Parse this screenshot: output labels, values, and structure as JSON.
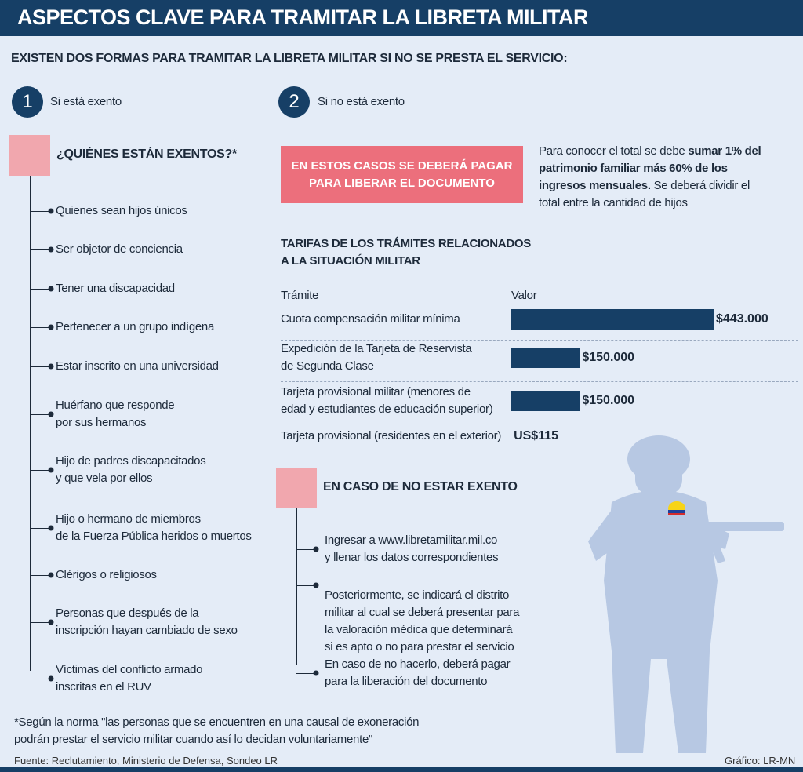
{
  "header": {
    "title": "ASPECTOS CLAVE PARA TRAMITAR LA LIBRETA MILITAR"
  },
  "subtitle": "EXISTEN DOS FORMAS PARA TRAMITAR LA LIBRETA MILITAR SI NO SE PRESTA EL SERVICIO:",
  "options": [
    {
      "number": "1",
      "label": "Si está exento"
    },
    {
      "number": "2",
      "label": "Si no está exento"
    }
  ],
  "exempt": {
    "title": "¿QUIÉNES ESTÁN EXENTOS?*",
    "items": [
      "Quienes sean hijos únicos",
      "Ser objetor de conciencia",
      "Tener una discapacidad",
      "Pertenecer a un grupo indígena",
      "Estar inscrito en una universidad",
      "Huérfano que responde\npor sus hermanos",
      "Hijo de padres discapacitados\ny que vela por ellos",
      "Hijo o hermano de miembros\nde la Fuerza Pública heridos o muertos",
      "Clérigos o religiosos",
      "Personas que después de la\ninscripción hayan cambiado de sexo",
      "Víctimas del conflicto armado\ninscritas en el RUV"
    ]
  },
  "payment": {
    "banner": "EN ESTOS CASOS SE DEBERÁ PAGAR PARA LIBERAR EL DOCUMENTO",
    "note": [
      "Para conocer el total se debe",
      "sumar 1% del patrimonio familiar más 60% de los ingresos mensuales.",
      "Se deberá dividir el total entre la cantidad de hijos"
    ]
  },
  "fees": {
    "title": "TARIFAS DE LOS TRÁMITES RELACIONADOS\nA LA SITUACIÓN MILITAR",
    "columns": [
      "Trámite",
      "Valor"
    ],
    "rows": [
      {
        "label": "Cuota compensación militar mínima",
        "value": 443000,
        "value_label": "$443.000"
      },
      {
        "label": "Expedición de la Tarjeta de Reservista\nde Segunda Clase",
        "value": 150000,
        "value_label": "$150.000"
      },
      {
        "label": "Tarjeta provisional militar (menores de\nedad y estudiantes de educación superior)",
        "value": 150000,
        "value_label": "$150.000"
      },
      {
        "label": "Tarjeta provisional (residentes en el exterior)",
        "value": 115,
        "value_label": "US$115"
      }
    ]
  },
  "steps": {
    "title": "EN CASO DE NO ESTAR EXENTO",
    "items": [
      "Ingresar a www.libretamilitar.mil.co\ny llenar los datos correspondientes",
      "Posteriormente, se indicará el distrito\nmilitar al cual se deberá presentar para\nla valoración médica que determinará\nsi es apto o no para prestar el servicio",
      "En caso de no hacerlo, deberá pagar\npara la liberación del documento"
    ]
  },
  "footnote": "*Según la norma \"las personas que se encuentren en una causal de exoneración\npodrán prestar el servicio militar cuando así lo decidan voluntariamente\"",
  "source": "Fuente:  Reclutamiento, Ministerio de Defensa, Sondeo LR",
  "credit": "Gráfico: LR-MN"
}
